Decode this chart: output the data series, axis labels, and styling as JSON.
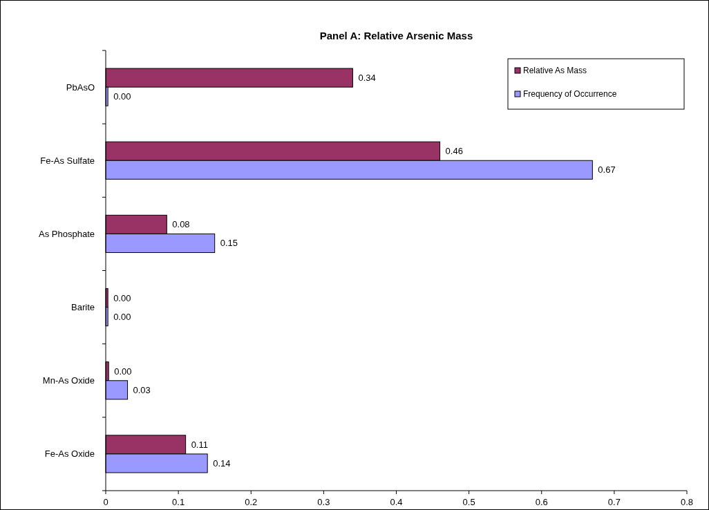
{
  "chart_data": {
    "type": "bar",
    "orientation": "horizontal",
    "title": "Panel A:  Relative Arsenic Mass",
    "categories": [
      "PbAsO",
      "Fe-As Sulfate",
      "As Phosphate",
      "Barite",
      "Mn-As Oxide",
      "Fe-As Oxide"
    ],
    "series": [
      {
        "name": "Relative As Mass",
        "color": "#993366",
        "values": [
          0.34,
          0.46,
          0.084,
          0.003,
          0.004,
          0.11
        ],
        "value_labels": [
          "0.34",
          "0.46",
          "0.08",
          "0.00",
          "0.00",
          "0.11"
        ]
      },
      {
        "name": "Frequency of Occurrence",
        "color": "#9999ff",
        "values": [
          0.003,
          0.67,
          0.15,
          0.003,
          0.03,
          0.14
        ],
        "value_labels": [
          "0.00",
          "0.67",
          "0.15",
          "0.00",
          "0.03",
          "0.14"
        ]
      }
    ],
    "xlim": [
      0,
      0.8
    ],
    "xticks": [
      0,
      0.1,
      0.2,
      0.3,
      0.4,
      0.5,
      0.6,
      0.7,
      0.8
    ],
    "grid": false,
    "legend": "top right"
  }
}
